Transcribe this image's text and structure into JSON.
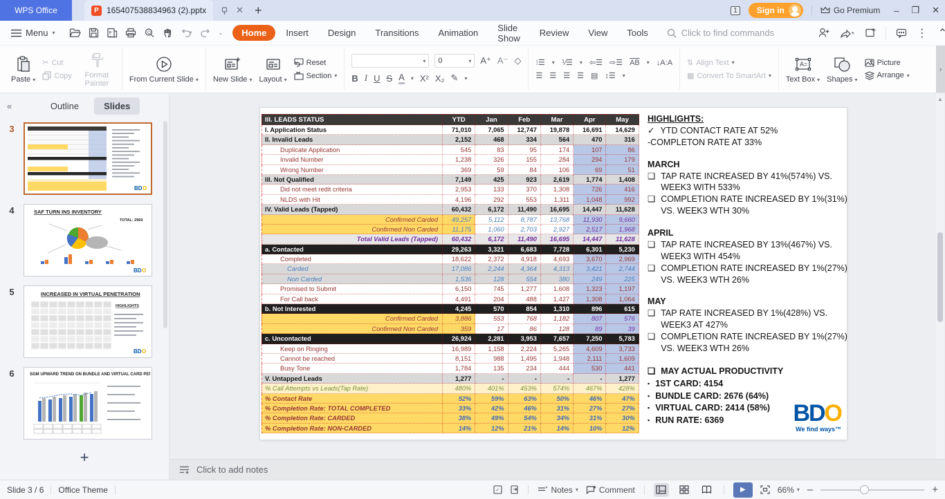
{
  "titlebar": {
    "app_button": "WPS Office",
    "doc_tab": "165407538834963 (2).pptx",
    "window_badge": "1",
    "sign_in": "Sign in",
    "go_premium": "Go Premium"
  },
  "menubar": {
    "menu_label": "Menu",
    "tabs": [
      "Home",
      "Insert",
      "Design",
      "Transitions",
      "Animation",
      "Slide Show",
      "Review",
      "View",
      "Tools"
    ],
    "active_tab": "Home",
    "search_placeholder": "Click to find commands"
  },
  "ribbon": {
    "paste": "Paste",
    "cut": "Cut",
    "copy": "Copy",
    "format_painter": "Format Painter",
    "from_current_slide": "From Current Slide",
    "new_slide": "New Slide",
    "layout": "Layout",
    "reset": "Reset",
    "section": "Section",
    "font_size_value": "0",
    "align_text": "Align Text",
    "convert_smartart": "Convert To SmartArt",
    "text_box": "Text Box",
    "shapes": "Shapes",
    "picture": "Picture",
    "arrange": "Arrange"
  },
  "sidebar": {
    "tabs": [
      "Outline",
      "Slides"
    ],
    "active_tab": "Slides",
    "slides": [
      {
        "num": "3",
        "selected": true,
        "kind": "table",
        "title": ""
      },
      {
        "num": "4",
        "selected": false,
        "kind": "pie",
        "title": "SAF TURN INS INVENTORY"
      },
      {
        "num": "5",
        "selected": false,
        "kind": "table2",
        "title": "INCREASED IN VIRTUAL PENETRATION"
      },
      {
        "num": "6",
        "selected": false,
        "kind": "bars",
        "title": "SGM UPWARD TREND ON BUNDLE AND VIRTUAL CARD PENETRATION"
      }
    ]
  },
  "slide": {
    "table": {
      "title": "III. LEADS STATUS",
      "columns": [
        "YTD",
        "Jan",
        "Feb",
        "Mar",
        "Apr",
        "May"
      ],
      "rows": [
        {
          "label": "I. Application Status",
          "style": "bold",
          "values": [
            "71,010",
            "7,065",
            "12,747",
            "19,878",
            "16,691",
            "14,629"
          ]
        },
        {
          "label": "II. Invalid Leads",
          "style": "section",
          "values": [
            "2,152",
            "468",
            "334",
            "564",
            "470",
            "316"
          ]
        },
        {
          "label": "Duplicate Application",
          "style": "sub",
          "values": [
            "545",
            "83",
            "95",
            "174",
            "107",
            "86"
          ]
        },
        {
          "label": "Invalid Number",
          "style": "sub",
          "values": [
            "1,238",
            "326",
            "155",
            "284",
            "294",
            "179"
          ]
        },
        {
          "label": "Wrong Number",
          "style": "sub",
          "values": [
            "369",
            "59",
            "84",
            "106",
            "69",
            "51"
          ]
        },
        {
          "label": "III. Not Qualified",
          "style": "section",
          "values": [
            "7,149",
            "425",
            "923",
            "2,619",
            "1,774",
            "1,408"
          ]
        },
        {
          "label": "Did not meet redit criteria",
          "style": "sub",
          "values": [
            "2,953",
            "133",
            "370",
            "1,308",
            "726",
            "416"
          ]
        },
        {
          "label": "NLDS with Hit",
          "style": "sub",
          "values": [
            "4,196",
            "292",
            "553",
            "1,311",
            "1,048",
            "992"
          ]
        },
        {
          "label": "IV. Valid Leads (Tapped)",
          "style": "section",
          "values": [
            "60,432",
            "6,172",
            "11,490",
            "16,695",
            "14,447",
            "11,628"
          ]
        },
        {
          "label": "Confirmed Carded",
          "style": "conf-blue",
          "values": [
            "49,257",
            "5,112",
            "8,787",
            "13,768",
            "11,930",
            "9,660"
          ]
        },
        {
          "label": "Confirmed Non Carded",
          "style": "conf-blue",
          "values": [
            "11,175",
            "1,060",
            "2,703",
            "2,927",
            "2,517",
            "1,968"
          ]
        },
        {
          "label": "Total Valid Leads (Tapped)",
          "style": "total",
          "values": [
            "60,432",
            "6,172",
            "11,490",
            "16,695",
            "14,447",
            "11,628"
          ]
        },
        {
          "label": "a. Contacted",
          "style": "black",
          "values": [
            "29,263",
            "3,321",
            "6,683",
            "7,728",
            "6,301",
            "5,230"
          ]
        },
        {
          "label": "Completed",
          "style": "sub",
          "values": [
            "18,622",
            "2,372",
            "4,918",
            "4,693",
            "3,670",
            "2,969"
          ]
        },
        {
          "label": "Carded",
          "style": "subit",
          "values": [
            "17,086",
            "2,244",
            "4,364",
            "4,313",
            "3,421",
            "2,744"
          ]
        },
        {
          "label": "Non Carded",
          "style": "subit",
          "values": [
            "1,536",
            "128",
            "554",
            "380",
            "249",
            "225"
          ]
        },
        {
          "label": "Promised to Submit",
          "style": "sub",
          "values": [
            "6,150",
            "745",
            "1,277",
            "1,608",
            "1,323",
            "1,197"
          ]
        },
        {
          "label": "For Call back",
          "style": "sub",
          "values": [
            "4,491",
            "204",
            "488",
            "1,427",
            "1,308",
            "1,064"
          ]
        },
        {
          "label": "b. Not Interested",
          "style": "black",
          "values": [
            "4,245",
            "570",
            "854",
            "1,310",
            "896",
            "615"
          ]
        },
        {
          "label": "Confirmed Carded",
          "style": "conf-red",
          "values": [
            "3,886",
            "553",
            "768",
            "1,182",
            "807",
            "576"
          ]
        },
        {
          "label": "Confirmed Non Carded",
          "style": "conf-red",
          "values": [
            "359",
            "17",
            "86",
            "128",
            "89",
            "39"
          ]
        },
        {
          "label": "c. Uncontacted",
          "style": "black",
          "values": [
            "26,924",
            "2,281",
            "3,953",
            "7,657",
            "7,250",
            "5,783"
          ]
        },
        {
          "label": "Keep on Ringing",
          "style": "sub",
          "values": [
            "16,989",
            "1,158",
            "2,224",
            "5,265",
            "4,609",
            "3,733"
          ]
        },
        {
          "label": "Cannot be reached",
          "style": "sub",
          "values": [
            "8,151",
            "988",
            "1,495",
            "1,948",
            "2,111",
            "1,609"
          ]
        },
        {
          "label": "Busy Tone",
          "style": "sub",
          "values": [
            "1,784",
            "135",
            "234",
            "444",
            "530",
            "441"
          ]
        },
        {
          "label": "V. Untapped Leads",
          "style": "section",
          "values": [
            "1,277",
            "-",
            "-",
            "-",
            "-",
            "1,277"
          ]
        },
        {
          "label": "% Call Attempts vs Leads(Tap Rate)",
          "style": "pct-light",
          "values": [
            "480%",
            "401%",
            "453%",
            "574%",
            "467%",
            "428%"
          ]
        },
        {
          "label": "% Contact Rate",
          "style": "pct",
          "values": [
            "52%",
            "59%",
            "63%",
            "50%",
            "46%",
            "47%"
          ]
        },
        {
          "label": "% Completion Rate: TOTAL COMPLETED",
          "style": "pct",
          "values": [
            "33%",
            "42%",
            "46%",
            "31%",
            "27%",
            "27%"
          ]
        },
        {
          "label": "% Completion Rate: CARDED",
          "style": "pct",
          "values": [
            "38%",
            "49%",
            "54%",
            "34%",
            "31%",
            "30%"
          ]
        },
        {
          "label": "% Completion Rate: NON-CARDED",
          "style": "pct",
          "values": [
            "14%",
            "12%",
            "21%",
            "14%",
            "10%",
            "12%"
          ]
        }
      ]
    },
    "highlights": {
      "title": "HIGHLIGHTS:",
      "check_glyph": "✓",
      "bullet_glyph": "❑",
      "square_glyph": "▪",
      "check_item": "YTD CONTACT RATE AT 52%",
      "plain_item": "-COMPLETON RATE AT 33%",
      "sections": [
        {
          "heading": "MARCH",
          "items": [
            "TAP RATE INCREASED BY 41%(574%) VS. WEEK3 WITH 533%",
            "COMPLETION RATE INCREASED BY 1%(31%) VS. WEEK3 WTH 30%"
          ]
        },
        {
          "heading": "APRIL",
          "items": [
            "TAP RATE INCREASED BY 13%(467%) VS. WEEK3 WITH 454%",
            "COMPLETION RATE INCREASED BY 1%(27%) VS. WEEK3 WTH 26%"
          ]
        },
        {
          "heading": "MAY",
          "items": [
            "TAP RATE INCREASED BY 1%(428%) VS. WEEK3 AT 427%",
            "COMPLETION RATE INCREASED BY 1%(27%) VS. WEEK3 WTH 26%"
          ]
        }
      ],
      "productivity": {
        "heading": "MAY ACTUAL PRODUCTIVITY",
        "items": [
          "1ST CARD: 4154",
          "BUNDLE CARD: 2676 (64%)",
          "VIRTUAL CARD: 2414 (58%)",
          "RUN RATE: 6369"
        ]
      }
    },
    "logo": {
      "bd": "BD",
      "o": "O",
      "tagline": "We find ways™"
    }
  },
  "notes_placeholder": "Click to add notes",
  "statusbar": {
    "slide_indicator": "Slide 3 / 6",
    "theme": "Office Theme",
    "notes_label": "Notes",
    "comment_label": "Comment",
    "zoom_level": "66%"
  },
  "colors": {
    "accent_orange": "#eb6117",
    "wps_blue": "#4f73e3",
    "signin_orange": "#ffa12b",
    "table_header_bg": "#3b3838",
    "black_bar_bg": "#1f1f1f",
    "section_gray": "#d9d9d9",
    "yellow": "#ffd966",
    "light_yellow": "#fff1c9",
    "apr_may_blue": "#b9c7e6",
    "maroon": "#963634",
    "value_blue": "#4a7ebb",
    "purple": "#7030a0",
    "olive": "#77933c",
    "bdo_blue": "#0054a6",
    "bdo_yellow": "#f9b000"
  }
}
